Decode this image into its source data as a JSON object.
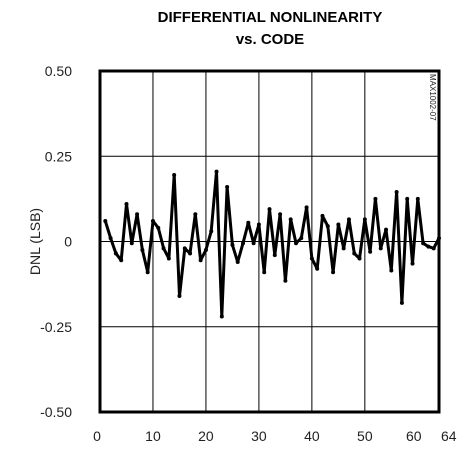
{
  "chart_data": {
    "type": "line",
    "title": "DIFFERENTIAL NONLINEARITY",
    "subtitle": "vs. CODE",
    "xlabel": "",
    "ylabel": "DNL (LSB)",
    "figure_id": "MAX1002-07",
    "xlim": [
      0,
      64
    ],
    "ylim": [
      -0.5,
      0.5
    ],
    "x_ticks": [
      0,
      10,
      20,
      30,
      40,
      50,
      60,
      64
    ],
    "x_tick_labels": [
      "0",
      "10",
      "20",
      "30",
      "40",
      "50",
      "60",
      "64"
    ],
    "y_ticks": [
      0.5,
      0.25,
      0,
      -0.25,
      -0.5
    ],
    "y_tick_labels": [
      "0.50",
      "0.25",
      "0",
      "-0.25",
      "-0.50"
    ],
    "grid": true,
    "legend": "none",
    "series": [
      {
        "color": "#000000",
        "x": [
          1,
          2,
          3,
          4,
          5,
          6,
          7,
          8,
          9,
          10,
          11,
          12,
          13,
          14,
          15,
          16,
          17,
          18,
          19,
          20,
          21,
          22,
          23,
          24,
          25,
          26,
          27,
          28,
          29,
          30,
          31,
          32,
          33,
          34,
          35,
          36,
          37,
          38,
          39,
          40,
          41,
          42,
          43,
          44,
          45,
          46,
          47,
          48,
          49,
          50,
          51,
          52,
          53,
          54,
          55,
          56,
          57,
          58,
          59,
          60,
          61,
          62,
          63,
          64
        ],
        "y": [
          0.06,
          0.01,
          -0.035,
          -0.055,
          0.11,
          -0.005,
          0.08,
          -0.025,
          -0.09,
          0.06,
          0.04,
          -0.02,
          -0.05,
          0.195,
          -0.16,
          -0.02,
          -0.035,
          0.08,
          -0.055,
          -0.025,
          0.03,
          0.205,
          -0.22,
          0.16,
          -0.01,
          -0.06,
          -0.005,
          0.055,
          -0.005,
          0.05,
          -0.09,
          0.095,
          -0.04,
          0.08,
          -0.115,
          0.065,
          -0.005,
          0.01,
          0.1,
          -0.05,
          -0.08,
          0.075,
          0.045,
          -0.09,
          0.05,
          -0.02,
          0.065,
          -0.035,
          -0.05,
          0.065,
          -0.03,
          0.125,
          -0.02,
          0.035,
          -0.085,
          0.145,
          -0.18,
          0.125,
          -0.065,
          0.125,
          -0.005,
          -0.015,
          -0.02,
          0.01
        ]
      }
    ]
  }
}
